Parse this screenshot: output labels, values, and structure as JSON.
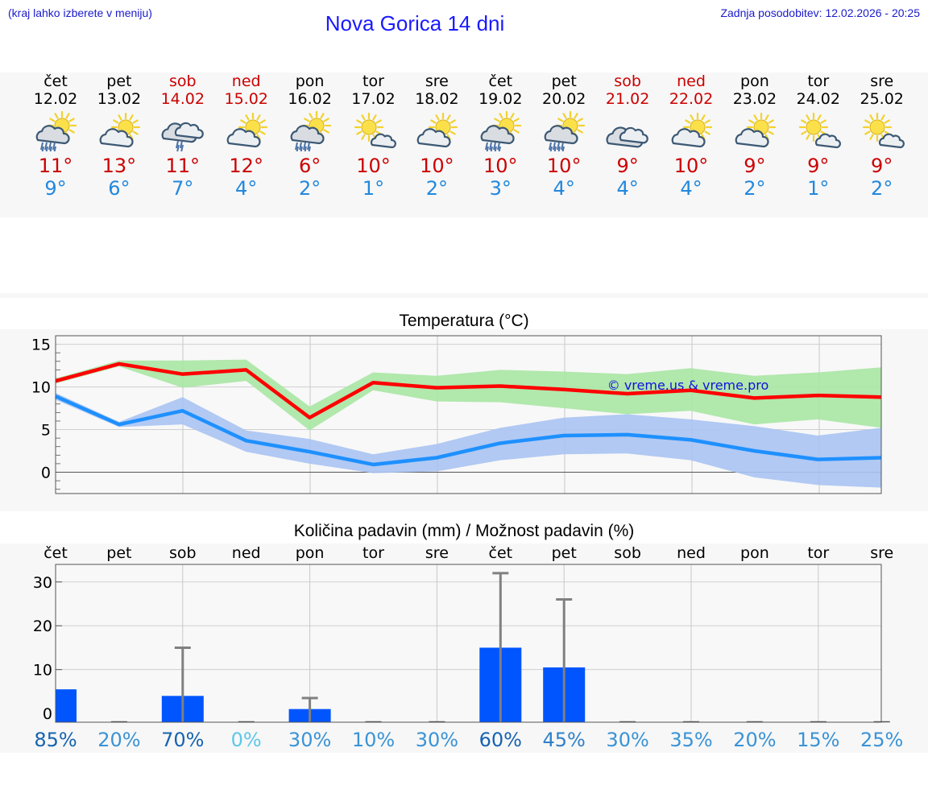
{
  "header": {
    "hint": "(kraj lahko izberete v meniju)",
    "title": "Nova Gorica 14 dni",
    "updated": "Zadnja posodobitev: 12.02.2026 - 20:25"
  },
  "colors": {
    "weekend": "#cc0000",
    "max_temp": "#cc0000",
    "min_temp": "#2288dd",
    "max_line": "#ff0000",
    "min_line": "#1e90ff",
    "max_band": "#a8e6a3",
    "min_band": "#a9c3f2",
    "bar": "#0055ff",
    "error_bar": "#808080"
  },
  "days": [
    {
      "name": "čet",
      "date": "12.02",
      "weekend": false,
      "icon": "sun-cloud-rain-icon",
      "max": "11°",
      "min": "9°"
    },
    {
      "name": "pet",
      "date": "13.02",
      "weekend": false,
      "icon": "sun-cloud-icon",
      "max": "13°",
      "min": "6°"
    },
    {
      "name": "sob",
      "date": "14.02",
      "weekend": true,
      "icon": "cloud-rain-icon",
      "max": "11°",
      "min": "7°"
    },
    {
      "name": "ned",
      "date": "15.02",
      "weekend": true,
      "icon": "sun-cloud-icon",
      "max": "12°",
      "min": "4°"
    },
    {
      "name": "pon",
      "date": "16.02",
      "weekend": false,
      "icon": "sun-cloud-rain-icon",
      "max": "6°",
      "min": "2°"
    },
    {
      "name": "tor",
      "date": "17.02",
      "weekend": false,
      "icon": "sun-small-cloud-icon",
      "max": "10°",
      "min": "1°"
    },
    {
      "name": "sre",
      "date": "18.02",
      "weekend": false,
      "icon": "sun-cloud-icon",
      "max": "10°",
      "min": "2°"
    },
    {
      "name": "čet",
      "date": "19.02",
      "weekend": false,
      "icon": "sun-cloud-rain-icon",
      "max": "10°",
      "min": "3°"
    },
    {
      "name": "pet",
      "date": "20.02",
      "weekend": false,
      "icon": "sun-cloud-rain-icon",
      "max": "10°",
      "min": "4°"
    },
    {
      "name": "sob",
      "date": "21.02",
      "weekend": true,
      "icon": "cloud-icon",
      "max": "9°",
      "min": "4°"
    },
    {
      "name": "ned",
      "date": "22.02",
      "weekend": true,
      "icon": "sun-cloud-icon",
      "max": "10°",
      "min": "4°"
    },
    {
      "name": "pon",
      "date": "23.02",
      "weekend": false,
      "icon": "sun-cloud-icon",
      "max": "9°",
      "min": "2°"
    },
    {
      "name": "tor",
      "date": "24.02",
      "weekend": false,
      "icon": "sun-small-cloud-icon",
      "max": "9°",
      "min": "1°"
    },
    {
      "name": "sre",
      "date": "25.02",
      "weekend": false,
      "icon": "sun-small-cloud-icon",
      "max": "9°",
      "min": "2°"
    }
  ],
  "chart_data": [
    {
      "type": "line",
      "title": "Temperatura (°C)",
      "watermark": "© vreme.us & vreme.pro",
      "x": [
        0,
        1,
        2,
        3,
        4,
        5,
        6,
        7,
        8,
        9,
        10,
        11,
        12,
        13
      ],
      "ylim": [
        -2.5,
        16
      ],
      "yticks": [
        0,
        5,
        10,
        15
      ],
      "grid": true,
      "series": [
        {
          "name": "max",
          "values": [
            10.7,
            12.7,
            11.5,
            12.0,
            6.4,
            10.5,
            9.9,
            10.1,
            9.7,
            9.2,
            9.6,
            8.7,
            9.0,
            8.8
          ],
          "band_low": [
            10.4,
            12.4,
            9.9,
            10.7,
            4.9,
            9.6,
            8.3,
            8.2,
            7.5,
            6.8,
            7.2,
            5.6,
            6.2,
            5.2
          ],
          "band_high": [
            11.0,
            13.1,
            13.1,
            13.2,
            7.7,
            11.7,
            11.3,
            12.0,
            11.8,
            11.5,
            12.2,
            11.3,
            11.7,
            12.3
          ]
        },
        {
          "name": "min",
          "values": [
            8.9,
            5.6,
            7.2,
            3.7,
            2.4,
            0.9,
            1.7,
            3.4,
            4.3,
            4.4,
            3.8,
            2.5,
            1.5,
            1.7
          ],
          "band_low": [
            8.5,
            5.3,
            5.6,
            2.4,
            1.0,
            -0.1,
            0.1,
            1.4,
            2.1,
            2.2,
            1.4,
            -0.6,
            -1.5,
            -1.8
          ],
          "band_high": [
            9.3,
            5.9,
            8.8,
            4.9,
            3.9,
            2.1,
            3.3,
            5.2,
            6.4,
            6.8,
            6.2,
            5.4,
            4.3,
            5.2
          ]
        }
      ]
    },
    {
      "type": "bar",
      "title": "Količina padavin (mm) / Možnost padavin (%)",
      "categories": [
        "čet",
        "pet",
        "sob",
        "ned",
        "pon",
        "tor",
        "sre",
        "čet",
        "pet",
        "sob",
        "ned",
        "pon",
        "tor",
        "sre"
      ],
      "values": [
        5.5,
        0,
        4.0,
        0,
        1.0,
        0,
        0,
        15.0,
        10.5,
        0,
        0,
        0,
        0,
        0
      ],
      "error_high": [
        null,
        0,
        15.0,
        0,
        3.5,
        0,
        0,
        32.0,
        26.0,
        0,
        0,
        0,
        0,
        0
      ],
      "ylim": [
        -2,
        34
      ],
      "yticks": [
        0,
        10,
        20,
        30
      ],
      "probability": [
        "85%",
        "20%",
        "70%",
        "0%",
        "30%",
        "10%",
        "30%",
        "60%",
        "45%",
        "30%",
        "35%",
        "20%",
        "15%",
        "25%"
      ],
      "probability_colors": [
        "#1763b0",
        "#3a93d6",
        "#1763b0",
        "#5cc8e8",
        "#3a93d6",
        "#3a93d6",
        "#3a93d6",
        "#1763b0",
        "#2f80c9",
        "#3a93d6",
        "#3a93d6",
        "#3a93d6",
        "#3a93d6",
        "#3a93d6"
      ]
    }
  ]
}
